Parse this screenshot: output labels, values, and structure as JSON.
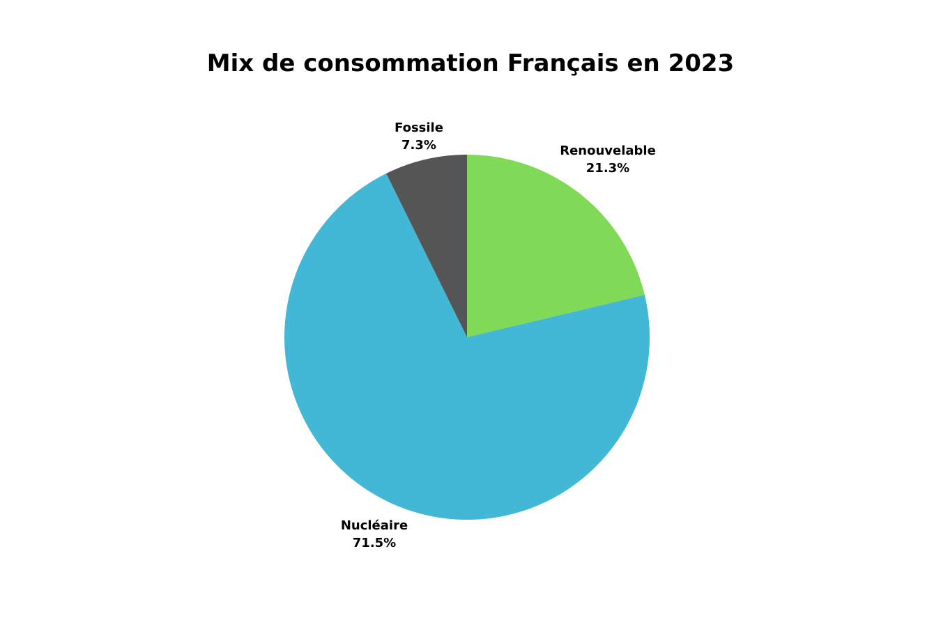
{
  "chart_data": {
    "type": "pie",
    "title": "Mix de consommation Français en 2023",
    "start_angle": "12 o'clock",
    "direction": "clockwise",
    "slices": [
      {
        "label": "Renouvelable",
        "value": 21.3,
        "value_label": "21.3%",
        "color": "#80d957"
      },
      {
        "label": "Nucléaire",
        "value": 71.5,
        "value_label": "71.5%",
        "color": "#42b7d6"
      },
      {
        "label": "Fossile",
        "value": 7.3,
        "value_label": "7.3%",
        "color": "#555555"
      }
    ]
  }
}
